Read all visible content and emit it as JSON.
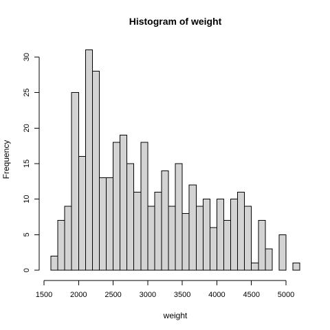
{
  "chart_data": {
    "type": "bar",
    "title": "Histogram of weight",
    "xlabel": "weight",
    "ylabel": "Frequency",
    "bin_width": 100,
    "bins": [
      {
        "start": 1600,
        "end": 1700,
        "count": 2
      },
      {
        "start": 1700,
        "end": 1800,
        "count": 7
      },
      {
        "start": 1800,
        "end": 1900,
        "count": 9
      },
      {
        "start": 1900,
        "end": 2000,
        "count": 25
      },
      {
        "start": 2000,
        "end": 2100,
        "count": 16
      },
      {
        "start": 2100,
        "end": 2200,
        "count": 31
      },
      {
        "start": 2200,
        "end": 2300,
        "count": 28
      },
      {
        "start": 2300,
        "end": 2400,
        "count": 13
      },
      {
        "start": 2400,
        "end": 2500,
        "count": 13
      },
      {
        "start": 2500,
        "end": 2600,
        "count": 18
      },
      {
        "start": 2600,
        "end": 2700,
        "count": 19
      },
      {
        "start": 2700,
        "end": 2800,
        "count": 15
      },
      {
        "start": 2800,
        "end": 2900,
        "count": 11
      },
      {
        "start": 2900,
        "end": 3000,
        "count": 18
      },
      {
        "start": 3000,
        "end": 3100,
        "count": 9
      },
      {
        "start": 3100,
        "end": 3200,
        "count": 11
      },
      {
        "start": 3200,
        "end": 3300,
        "count": 14
      },
      {
        "start": 3300,
        "end": 3400,
        "count": 9
      },
      {
        "start": 3400,
        "end": 3500,
        "count": 15
      },
      {
        "start": 3500,
        "end": 3600,
        "count": 8
      },
      {
        "start": 3600,
        "end": 3700,
        "count": 12
      },
      {
        "start": 3700,
        "end": 3800,
        "count": 9
      },
      {
        "start": 3800,
        "end": 3900,
        "count": 10
      },
      {
        "start": 3900,
        "end": 4000,
        "count": 6
      },
      {
        "start": 4000,
        "end": 4100,
        "count": 10
      },
      {
        "start": 4100,
        "end": 4200,
        "count": 7
      },
      {
        "start": 4200,
        "end": 4300,
        "count": 10
      },
      {
        "start": 4300,
        "end": 4400,
        "count": 11
      },
      {
        "start": 4400,
        "end": 4500,
        "count": 9
      },
      {
        "start": 4500,
        "end": 4600,
        "count": 1
      },
      {
        "start": 4600,
        "end": 4700,
        "count": 7
      },
      {
        "start": 4700,
        "end": 4800,
        "count": 3
      },
      {
        "start": 4800,
        "end": 4900,
        "count": 0
      },
      {
        "start": 4900,
        "end": 5000,
        "count": 5
      },
      {
        "start": 5000,
        "end": 5100,
        "count": 0
      },
      {
        "start": 5100,
        "end": 5200,
        "count": 1
      }
    ],
    "xlim": [
      1500,
      5200
    ],
    "ylim": [
      0,
      31
    ],
    "x_ticks": [
      "1500",
      "2000",
      "2500",
      "3000",
      "3500",
      "4000",
      "4500",
      "5000"
    ],
    "y_ticks": [
      "0",
      "5",
      "10",
      "15",
      "20",
      "25",
      "30"
    ],
    "bar_fill": "#d3d3d3",
    "bar_stroke": "#000000",
    "grid": false,
    "legend": "none"
  }
}
